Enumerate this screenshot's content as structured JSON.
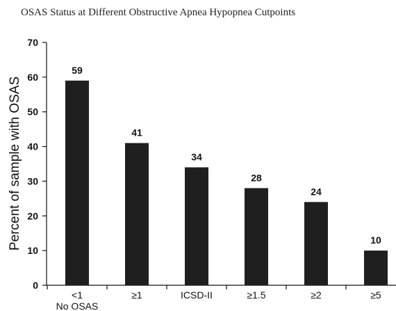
{
  "chart_data": {
    "type": "bar",
    "title": "OSAS Status at Different Obstructive Apnea Hypopnea Cutpoints",
    "ylabel": "Percent of sample with OSAS",
    "xlabel": "",
    "categories": [
      "<1",
      "≥1",
      "ICSD-II",
      "≥1.5",
      "≥2",
      "≥5"
    ],
    "category_sublabels": [
      "No OSAS",
      "",
      "",
      "",
      "",
      ""
    ],
    "values": [
      59,
      41,
      34,
      28,
      24,
      10
    ],
    "data_labels": [
      "59",
      "41",
      "34",
      "28",
      "24",
      "10"
    ],
    "ylim": [
      0,
      70
    ],
    "yticks": [
      0,
      10,
      20,
      30,
      40,
      50,
      60,
      70
    ],
    "grid": false,
    "bar_color": "#1f1f1f"
  }
}
